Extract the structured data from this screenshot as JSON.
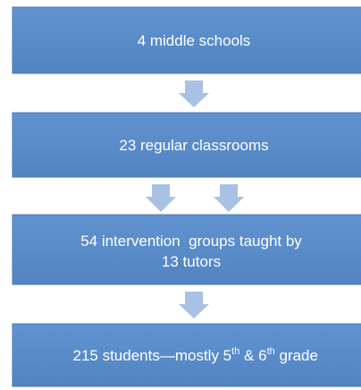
{
  "nodes": [
    {
      "lines": [
        "4 middle schools"
      ]
    },
    {
      "lines": [
        "23 regular classrooms"
      ]
    },
    {
      "lines": [
        "54 intervention  groups taught by",
        "13 tutors"
      ]
    },
    {
      "parts": [
        "215 students—mostly 5",
        "th",
        " & 6",
        "th",
        " grade"
      ]
    }
  ]
}
